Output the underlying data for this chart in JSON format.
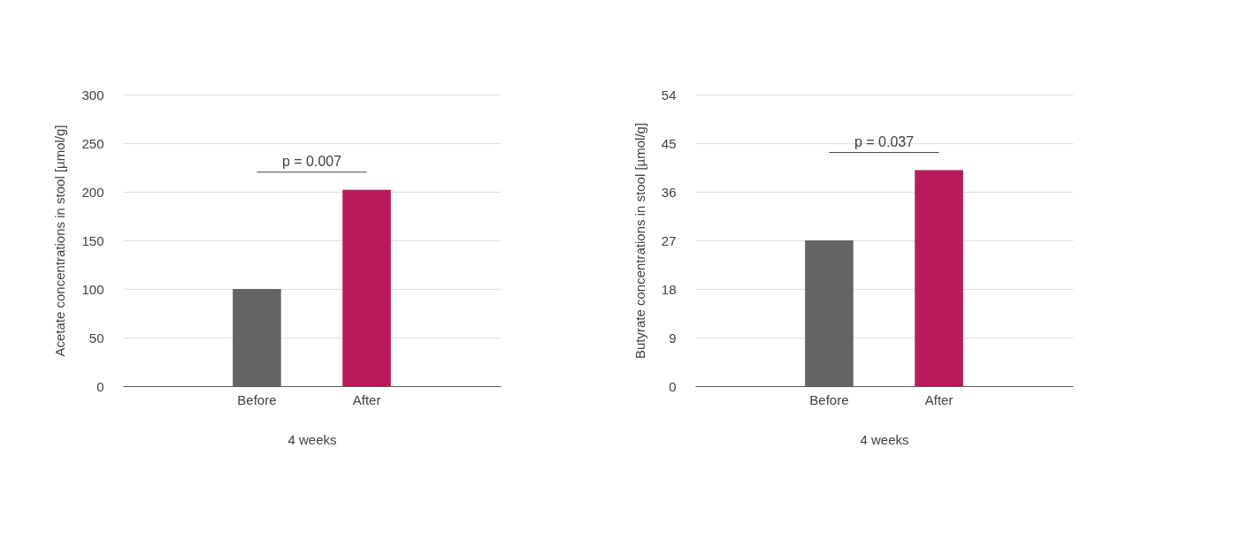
{
  "chart_data": [
    {
      "type": "bar",
      "categories": [
        "Before",
        "After"
      ],
      "colors": [
        "#646462",
        "#b91a5b"
      ],
      "values": [
        100,
        202
      ],
      "ylabel": "Acetate concentrations in stool [µmol/g]",
      "xlabel": "4 weeks",
      "ylim": [
        0,
        300
      ],
      "yticks": [
        0,
        50,
        100,
        150,
        200,
        250,
        300
      ],
      "grid": "y",
      "annotations": [
        "p = 0.007"
      ]
    },
    {
      "type": "bar",
      "categories": [
        "Before",
        "After"
      ],
      "colors": [
        "#646462",
        "#b91a5b"
      ],
      "values": [
        27,
        40
      ],
      "ylabel": "Butyrate concentrations in stool [µmol/g]",
      "xlabel": "4 weeks",
      "ylim": [
        0,
        54
      ],
      "yticks": [
        0,
        9,
        18,
        27,
        36,
        45,
        54
      ],
      "grid": "y",
      "annotations": [
        "p = 0.037"
      ]
    }
  ]
}
